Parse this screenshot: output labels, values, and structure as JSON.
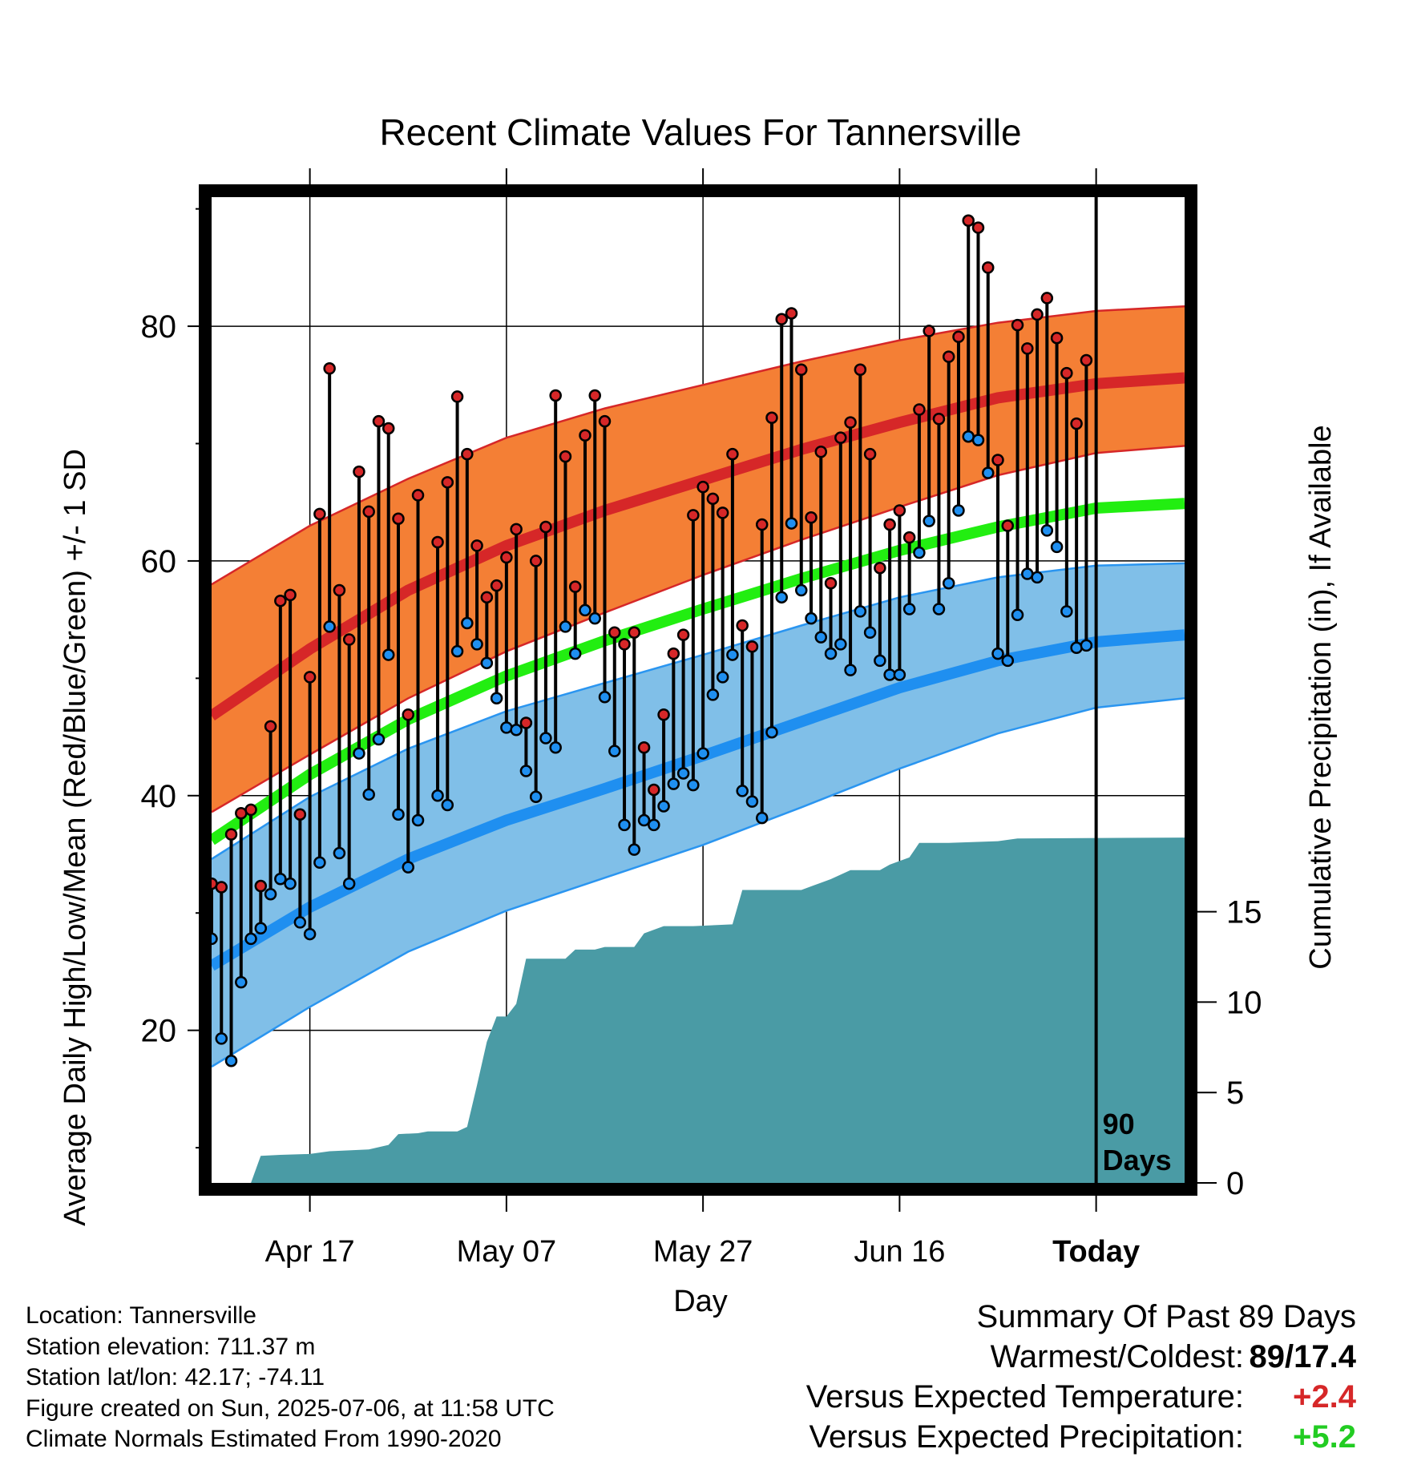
{
  "chart_data": {
    "type": "line",
    "title": "Recent Climate Values For Tannersville",
    "xlabel": "Day",
    "ylabel": "Average Daily High/Low/Mean (Red/Blue/Green) +/- 1 SD",
    "y2label": "Cumulative Precipitation (in), If Available",
    "x_tick_labels": [
      "Apr 17",
      "May 07",
      "May 27",
      "Jun 16",
      "Today"
    ],
    "x_range": [
      "2025-04-07",
      "2025-07-15"
    ],
    "ylim": [
      7,
      91
    ],
    "y_ticks": [
      20,
      40,
      60,
      80
    ],
    "y2lim": [
      0,
      26
    ],
    "y2_ticks": [
      0,
      5,
      10,
      15
    ],
    "today_marker": {
      "date": "2025-07-06",
      "label_line1": "90",
      "label_line2": "Days"
    },
    "normals": {
      "dates": [
        "2025-04-07",
        "2025-04-17",
        "2025-04-27",
        "2025-05-07",
        "2025-05-17",
        "2025-05-27",
        "2025-06-06",
        "2025-06-16",
        "2025-06-26",
        "2025-07-06",
        "2025-07-15"
      ],
      "high_mean": [
        46.8,
        52.5,
        57.5,
        61.3,
        64.3,
        66.9,
        69.5,
        71.8,
        73.9,
        75.1,
        75.6
      ],
      "high_sd_upper": [
        58.0,
        63.0,
        67.0,
        70.5,
        73.0,
        75.0,
        77.0,
        78.8,
        80.3,
        81.3,
        81.7
      ],
      "high_sd_lower": [
        38.6,
        43.5,
        48.3,
        52.3,
        55.6,
        58.8,
        61.8,
        64.6,
        67.3,
        69.2,
        69.8
      ],
      "mean": [
        36.2,
        41.8,
        46.5,
        50.2,
        53.2,
        55.9,
        58.5,
        60.9,
        62.9,
        64.5,
        64.9
      ],
      "low_mean": [
        25.5,
        30.5,
        34.6,
        37.9,
        40.6,
        43.4,
        46.3,
        49.2,
        51.5,
        53.1,
        53.7
      ],
      "low_sd_upper": [
        34.6,
        39.9,
        44.0,
        47.2,
        49.6,
        52.0,
        54.5,
        56.9,
        58.6,
        59.6,
        59.8
      ],
      "low_sd_lower": [
        16.9,
        22.0,
        26.7,
        30.2,
        33.0,
        35.8,
        39.0,
        42.3,
        45.3,
        47.5,
        48.3
      ]
    },
    "observations": [
      {
        "date": "2025-04-07",
        "high": 32.5,
        "low": 27.8
      },
      {
        "date": "2025-04-08",
        "high": 32.2,
        "low": 19.3
      },
      {
        "date": "2025-04-09",
        "high": 36.7,
        "low": 17.4
      },
      {
        "date": "2025-04-10",
        "high": 38.5,
        "low": 24.1
      },
      {
        "date": "2025-04-11",
        "high": 38.8,
        "low": 27.8
      },
      {
        "date": "2025-04-12",
        "high": 32.3,
        "low": 28.7
      },
      {
        "date": "2025-04-13",
        "high": 45.9,
        "low": 31.6
      },
      {
        "date": "2025-04-14",
        "high": 56.6,
        "low": 32.9
      },
      {
        "date": "2025-04-15",
        "high": 57.1,
        "low": 32.5
      },
      {
        "date": "2025-04-16",
        "high": 38.4,
        "low": 29.2
      },
      {
        "date": "2025-04-17",
        "high": 50.1,
        "low": 28.2
      },
      {
        "date": "2025-04-18",
        "high": 64.0,
        "low": 34.3
      },
      {
        "date": "2025-04-19",
        "high": 76.4,
        "low": 54.4
      },
      {
        "date": "2025-04-20",
        "high": 57.5,
        "low": 35.1
      },
      {
        "date": "2025-04-21",
        "high": 53.3,
        "low": 32.5
      },
      {
        "date": "2025-04-22",
        "high": 67.6,
        "low": 43.6
      },
      {
        "date": "2025-04-23",
        "high": 64.2,
        "low": 40.1
      },
      {
        "date": "2025-04-24",
        "high": 71.9,
        "low": 44.8
      },
      {
        "date": "2025-04-25",
        "high": 71.3,
        "low": 52.0
      },
      {
        "date": "2025-04-26",
        "high": 63.6,
        "low": 38.4
      },
      {
        "date": "2025-04-27",
        "high": 46.9,
        "low": 33.9
      },
      {
        "date": "2025-04-28",
        "high": 65.6,
        "low": 37.9
      },
      {
        "date": "2025-04-30",
        "high": 61.6,
        "low": 40.0
      },
      {
        "date": "2025-05-01",
        "high": 66.7,
        "low": 39.2
      },
      {
        "date": "2025-05-02",
        "high": 74.0,
        "low": 52.3
      },
      {
        "date": "2025-05-03",
        "high": 69.1,
        "low": 54.7
      },
      {
        "date": "2025-05-04",
        "high": 61.3,
        "low": 52.9
      },
      {
        "date": "2025-05-05",
        "high": 56.9,
        "low": 51.3
      },
      {
        "date": "2025-05-06",
        "high": 57.9,
        "low": 48.3
      },
      {
        "date": "2025-05-07",
        "high": 60.3,
        "low": 45.8
      },
      {
        "date": "2025-05-08",
        "high": 62.7,
        "low": 45.6
      },
      {
        "date": "2025-05-09",
        "high": 46.2,
        "low": 42.1
      },
      {
        "date": "2025-05-10",
        "high": 60.0,
        "low": 39.9
      },
      {
        "date": "2025-05-11",
        "high": 62.9,
        "low": 44.9
      },
      {
        "date": "2025-05-12",
        "high": 74.1,
        "low": 44.1
      },
      {
        "date": "2025-05-13",
        "high": 68.9,
        "low": 54.4
      },
      {
        "date": "2025-05-14",
        "high": 57.8,
        "low": 52.1
      },
      {
        "date": "2025-05-15",
        "high": 70.7,
        "low": 55.8
      },
      {
        "date": "2025-05-16",
        "high": 74.1,
        "low": 55.1
      },
      {
        "date": "2025-05-17",
        "high": 71.9,
        "low": 48.4
      },
      {
        "date": "2025-05-18",
        "high": 53.9,
        "low": 43.8
      },
      {
        "date": "2025-05-19",
        "high": 52.9,
        "low": 37.5
      },
      {
        "date": "2025-05-20",
        "high": 53.9,
        "low": 35.4
      },
      {
        "date": "2025-05-21",
        "high": 44.1,
        "low": 37.9
      },
      {
        "date": "2025-05-22",
        "high": 40.5,
        "low": 37.5
      },
      {
        "date": "2025-05-23",
        "high": 46.9,
        "low": 39.1
      },
      {
        "date": "2025-05-24",
        "high": 52.1,
        "low": 41.0
      },
      {
        "date": "2025-05-25",
        "high": 53.7,
        "low": 41.9
      },
      {
        "date": "2025-05-26",
        "high": 63.9,
        "low": 40.9
      },
      {
        "date": "2025-05-27",
        "high": 66.3,
        "low": 43.6
      },
      {
        "date": "2025-05-28",
        "high": 65.3,
        "low": 48.6
      },
      {
        "date": "2025-05-29",
        "high": 64.1,
        "low": 50.1
      },
      {
        "date": "2025-05-30",
        "high": 69.1,
        "low": 52.0
      },
      {
        "date": "2025-05-31",
        "high": 54.5,
        "low": 40.4
      },
      {
        "date": "2025-06-01",
        "high": 52.7,
        "low": 39.5
      },
      {
        "date": "2025-06-02",
        "high": 63.1,
        "low": 38.1
      },
      {
        "date": "2025-06-03",
        "high": 72.2,
        "low": 45.4
      },
      {
        "date": "2025-06-04",
        "high": 80.6,
        "low": 56.9
      },
      {
        "date": "2025-06-05",
        "high": 81.1,
        "low": 63.2
      },
      {
        "date": "2025-06-06",
        "high": 76.3,
        "low": 57.5
      },
      {
        "date": "2025-06-07",
        "high": 63.7,
        "low": 55.1
      },
      {
        "date": "2025-06-08",
        "high": 69.3,
        "low": 53.5
      },
      {
        "date": "2025-06-09",
        "high": 58.1,
        "low": 52.1
      },
      {
        "date": "2025-06-10",
        "high": 70.5,
        "low": 52.9
      },
      {
        "date": "2025-06-11",
        "high": 71.8,
        "low": 50.7
      },
      {
        "date": "2025-06-12",
        "high": 76.3,
        "low": 55.7
      },
      {
        "date": "2025-06-13",
        "high": 69.1,
        "low": 53.9
      },
      {
        "date": "2025-06-14",
        "high": 59.4,
        "low": 51.5
      },
      {
        "date": "2025-06-15",
        "high": 63.1,
        "low": 50.3
      },
      {
        "date": "2025-06-16",
        "high": 64.3,
        "low": 50.3
      },
      {
        "date": "2025-06-17",
        "high": 62.0,
        "low": 55.9
      },
      {
        "date": "2025-06-18",
        "high": 72.9,
        "low": 60.7
      },
      {
        "date": "2025-06-19",
        "high": 79.6,
        "low": 63.4
      },
      {
        "date": "2025-06-20",
        "high": 72.1,
        "low": 55.9
      },
      {
        "date": "2025-06-21",
        "high": 77.4,
        "low": 58.1
      },
      {
        "date": "2025-06-22",
        "high": 79.1,
        "low": 64.3
      },
      {
        "date": "2025-06-23",
        "high": 89.0,
        "low": 70.6
      },
      {
        "date": "2025-06-24",
        "high": 88.4,
        "low": 70.3
      },
      {
        "date": "2025-06-25",
        "high": 85.0,
        "low": 67.5
      },
      {
        "date": "2025-06-26",
        "high": 68.6,
        "low": 52.1
      },
      {
        "date": "2025-06-27",
        "high": 63.0,
        "low": 51.5
      },
      {
        "date": "2025-06-28",
        "high": 80.1,
        "low": 55.4
      },
      {
        "date": "2025-06-29",
        "high": 78.1,
        "low": 58.9
      },
      {
        "date": "2025-06-30",
        "high": 81.0,
        "low": 58.6
      },
      {
        "date": "2025-07-01",
        "high": 82.4,
        "low": 62.6
      },
      {
        "date": "2025-07-02",
        "high": 79.0,
        "low": 61.2
      },
      {
        "date": "2025-07-03",
        "high": 76.0,
        "low": 55.7
      },
      {
        "date": "2025-07-04",
        "high": 71.7,
        "low": 52.6
      },
      {
        "date": "2025-07-05",
        "high": 77.1,
        "low": 52.8
      }
    ],
    "cumulative_precip": [
      {
        "date": "2025-04-07",
        "value": 0.0
      },
      {
        "date": "2025-04-11",
        "value": 0.0
      },
      {
        "date": "2025-04-12",
        "value": 1.5
      },
      {
        "date": "2025-04-14",
        "value": 1.55
      },
      {
        "date": "2025-04-17",
        "value": 1.6
      },
      {
        "date": "2025-04-19",
        "value": 1.75
      },
      {
        "date": "2025-04-23",
        "value": 1.85
      },
      {
        "date": "2025-04-25",
        "value": 2.1
      },
      {
        "date": "2025-04-26",
        "value": 2.7
      },
      {
        "date": "2025-04-28",
        "value": 2.75
      },
      {
        "date": "2025-04-29",
        "value": 2.85
      },
      {
        "date": "2025-05-02",
        "value": 2.85
      },
      {
        "date": "2025-05-03",
        "value": 3.1
      },
      {
        "date": "2025-05-04",
        "value": 5.4
      },
      {
        "date": "2025-05-05",
        "value": 7.8
      },
      {
        "date": "2025-05-06",
        "value": 9.2
      },
      {
        "date": "2025-05-07",
        "value": 9.2
      },
      {
        "date": "2025-05-08",
        "value": 9.9
      },
      {
        "date": "2025-05-09",
        "value": 12.4
      },
      {
        "date": "2025-05-13",
        "value": 12.4
      },
      {
        "date": "2025-05-14",
        "value": 12.9
      },
      {
        "date": "2025-05-16",
        "value": 12.9
      },
      {
        "date": "2025-05-17",
        "value": 13.05
      },
      {
        "date": "2025-05-20",
        "value": 13.05
      },
      {
        "date": "2025-05-21",
        "value": 13.8
      },
      {
        "date": "2025-05-23",
        "value": 14.2
      },
      {
        "date": "2025-05-26",
        "value": 14.2
      },
      {
        "date": "2025-05-30",
        "value": 14.3
      },
      {
        "date": "2025-05-31",
        "value": 16.2
      },
      {
        "date": "2025-06-06",
        "value": 16.2
      },
      {
        "date": "2025-06-08",
        "value": 16.6
      },
      {
        "date": "2025-06-09",
        "value": 16.8
      },
      {
        "date": "2025-06-11",
        "value": 17.3
      },
      {
        "date": "2025-06-14",
        "value": 17.3
      },
      {
        "date": "2025-06-15",
        "value": 17.6
      },
      {
        "date": "2025-06-17",
        "value": 18.0
      },
      {
        "date": "2025-06-18",
        "value": 18.8
      },
      {
        "date": "2025-06-21",
        "value": 18.8
      },
      {
        "date": "2025-06-26",
        "value": 18.9
      },
      {
        "date": "2025-06-28",
        "value": 19.05
      },
      {
        "date": "2025-07-15",
        "value": 19.1
      }
    ],
    "colors": {
      "high_band": "#f47f35",
      "high_line": "#d62728",
      "band_edge_high": "#d62728",
      "mean_line": "#22ee11",
      "low_band": "#80bfe8",
      "low_line": "#1f8ff0",
      "band_edge_low": "#2a95f0",
      "precip_fill": "#4a9ba5",
      "high_marker": "#d62728",
      "low_marker": "#1f8ff0"
    }
  },
  "footer": {
    "location": "Location: Tannersville",
    "elevation": "Station elevation: 711.37 m",
    "latlon": "Station lat/lon: 42.17; -74.11",
    "created": "Figure created on Sun, 2025-07-06, at 11:58 UTC",
    "normals": "Climate Normals Estimated From 1990-2020"
  },
  "summary": {
    "title": "Summary Of Past 89 Days",
    "warmest_coldest_label": "Warmest/Coldest:",
    "warmest": "89",
    "coldest": "17.4",
    "temp_label": "Versus Expected Temperature:",
    "temp_value": "+2.4",
    "precip_label": "Versus Expected Precipitation:",
    "precip_value": "+5.2"
  }
}
